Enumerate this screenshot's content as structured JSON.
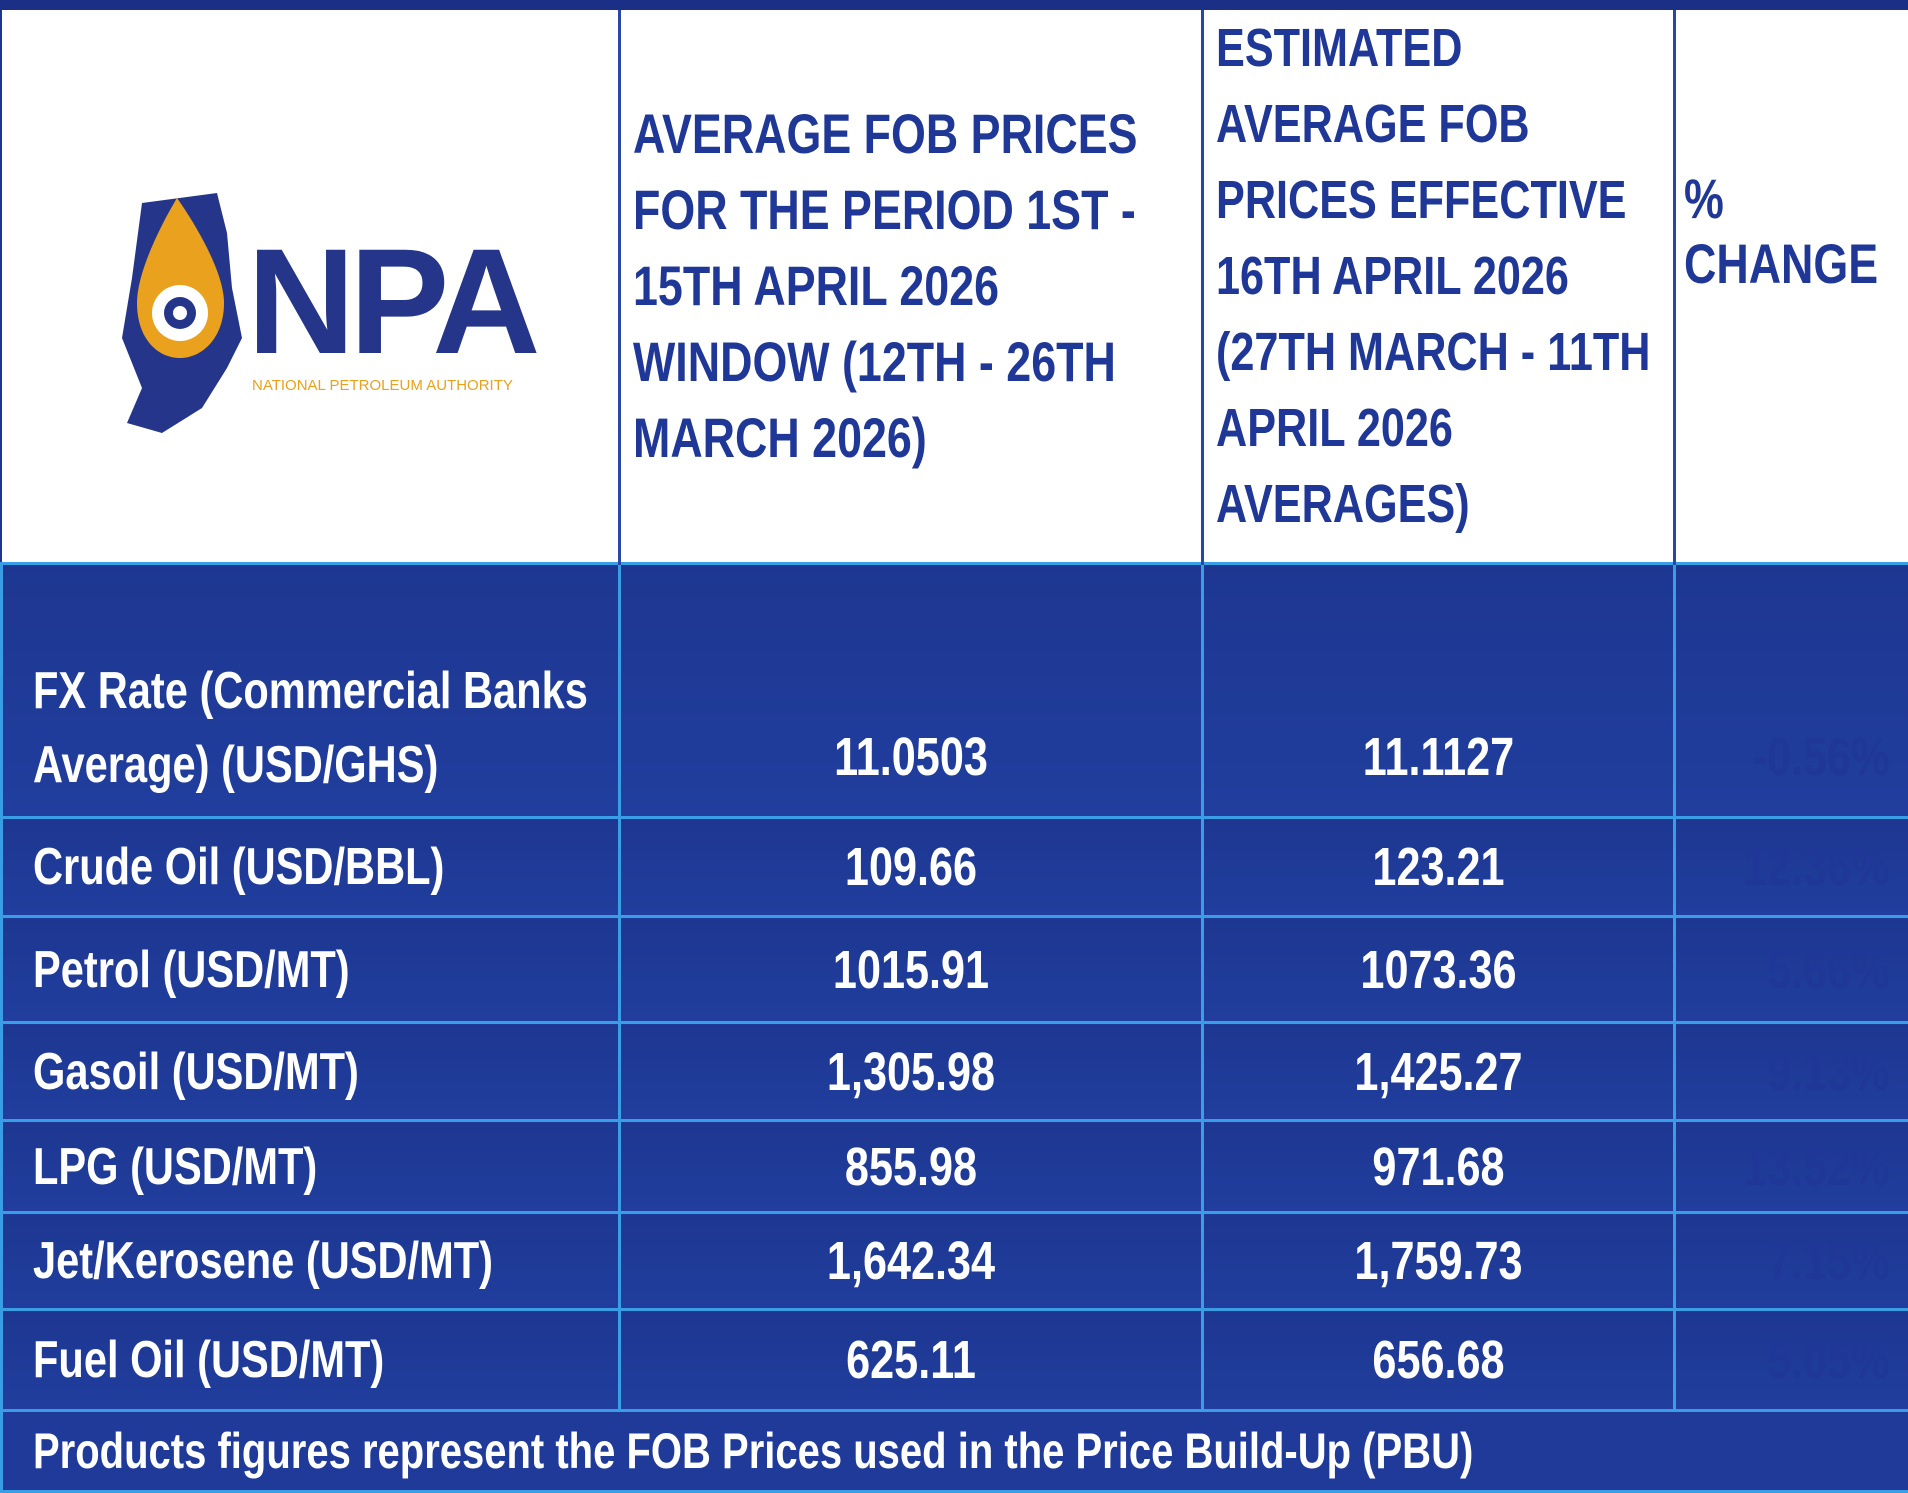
{
  "logo": {
    "acronym": "NPA",
    "name": "NATIONAL PETROLEUM AUTHORITY"
  },
  "table": {
    "headers": [
      "AVERAGE FOB PRICES FOR THE PERIOD 1ST - 15TH APRIL 2026 WINDOW (12TH - 26TH MARCH 2026)",
      "ESTIMATED AVERAGE FOB PRICES EFFECTIVE 16TH APRIL 2026 (27TH MARCH - 11TH APRIL 2026 AVERAGES)",
      "% CHANGE"
    ],
    "rows": [
      [
        "FX Rate (Commercial Banks Average) (USD/GHS)",
        "11.0503",
        "11.1127",
        "-0.56%"
      ],
      [
        "Crude Oil (USD/BBL)",
        "109.66",
        "123.21",
        "12.36%"
      ],
      [
        "Petrol (USD/MT)",
        "1015.91",
        "1073.36",
        "5.66%"
      ],
      [
        "Gasoil (USD/MT)",
        "1,305.98",
        "1,425.27",
        "9.13%"
      ],
      [
        "LPG (USD/MT)",
        "855.98",
        "971.68",
        "13.52%"
      ],
      [
        "Jet/Kerosene (USD/MT)",
        "1,642.34",
        "1,759.73",
        "7.15%"
      ],
      [
        "Fuel Oil (USD/MT)",
        "625.11",
        "656.68",
        "5.05%"
      ]
    ],
    "footnote": "Products figures represent the FOB Prices used in the Price Build-Up (PBU)"
  }
}
